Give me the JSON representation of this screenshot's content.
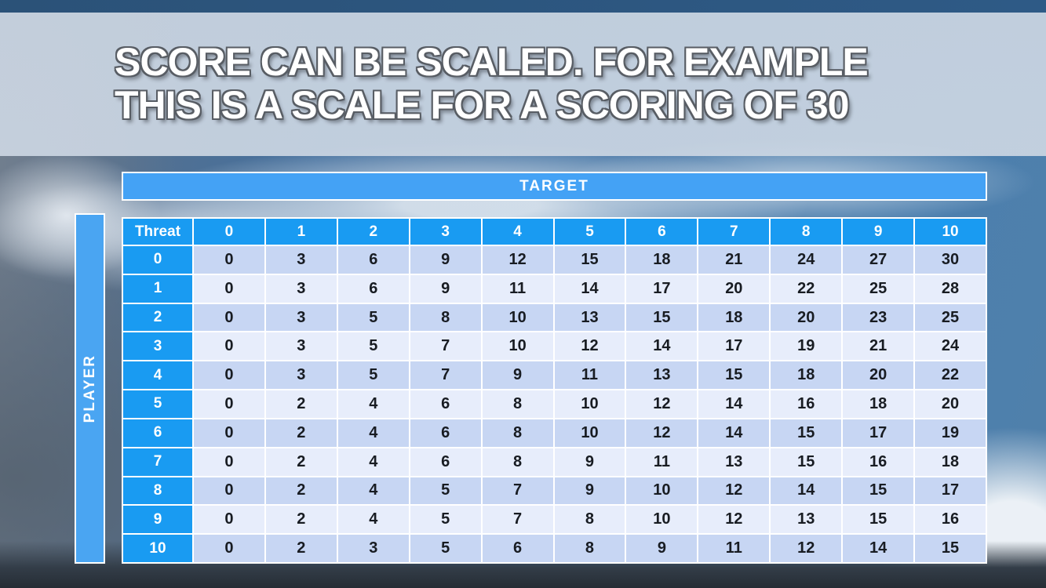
{
  "title": {
    "line1": "SCORE CAN BE SCALED. FOR EXAMPLE",
    "line2": "THIS IS A SCALE FOR A SCORING OF 30"
  },
  "table": {
    "target_label": "TARGET",
    "player_label": "PLAYER",
    "corner_label": "Threat",
    "column_headers": [
      "0",
      "1",
      "2",
      "3",
      "4",
      "5",
      "6",
      "7",
      "8",
      "9",
      "10"
    ],
    "row_headers": [
      "0",
      "1",
      "2",
      "3",
      "4",
      "5",
      "6",
      "7",
      "8",
      "9",
      "10"
    ],
    "rows": [
      [
        0,
        3,
        6,
        9,
        12,
        15,
        18,
        21,
        24,
        27,
        30
      ],
      [
        0,
        3,
        6,
        9,
        11,
        14,
        17,
        20,
        22,
        25,
        28
      ],
      [
        0,
        3,
        5,
        8,
        10,
        13,
        15,
        18,
        20,
        23,
        25
      ],
      [
        0,
        3,
        5,
        7,
        10,
        12,
        14,
        17,
        19,
        21,
        24
      ],
      [
        0,
        3,
        5,
        7,
        9,
        11,
        13,
        15,
        18,
        20,
        22
      ],
      [
        0,
        2,
        4,
        6,
        8,
        10,
        12,
        14,
        16,
        18,
        20
      ],
      [
        0,
        2,
        4,
        6,
        8,
        10,
        12,
        14,
        15,
        17,
        19
      ],
      [
        0,
        2,
        4,
        6,
        8,
        9,
        11,
        13,
        15,
        16,
        18
      ],
      [
        0,
        2,
        4,
        5,
        7,
        9,
        10,
        12,
        14,
        15,
        17
      ],
      [
        0,
        2,
        4,
        5,
        7,
        8,
        10,
        12,
        13,
        15,
        16
      ],
      [
        0,
        2,
        3,
        5,
        6,
        8,
        9,
        11,
        12,
        14,
        15
      ]
    ]
  },
  "chart_data": {
    "type": "table",
    "title": "Score scale for a scoring of 30",
    "xlabel": "TARGET",
    "ylabel": "PLAYER",
    "corner": "Threat",
    "columns": [
      0,
      1,
      2,
      3,
      4,
      5,
      6,
      7,
      8,
      9,
      10
    ],
    "row_index": [
      0,
      1,
      2,
      3,
      4,
      5,
      6,
      7,
      8,
      9,
      10
    ],
    "values": [
      [
        0,
        3,
        6,
        9,
        12,
        15,
        18,
        21,
        24,
        27,
        30
      ],
      [
        0,
        3,
        6,
        9,
        11,
        14,
        17,
        20,
        22,
        25,
        28
      ],
      [
        0,
        3,
        5,
        8,
        10,
        13,
        15,
        18,
        20,
        23,
        25
      ],
      [
        0,
        3,
        5,
        7,
        10,
        12,
        14,
        17,
        19,
        21,
        24
      ],
      [
        0,
        3,
        5,
        7,
        9,
        11,
        13,
        15,
        18,
        20,
        22
      ],
      [
        0,
        2,
        4,
        6,
        8,
        10,
        12,
        14,
        16,
        18,
        20
      ],
      [
        0,
        2,
        4,
        6,
        8,
        10,
        12,
        14,
        15,
        17,
        19
      ],
      [
        0,
        2,
        4,
        6,
        8,
        9,
        11,
        13,
        15,
        16,
        18
      ],
      [
        0,
        2,
        4,
        5,
        7,
        9,
        10,
        12,
        14,
        15,
        17
      ],
      [
        0,
        2,
        4,
        5,
        7,
        8,
        10,
        12,
        13,
        15,
        16
      ],
      [
        0,
        2,
        3,
        5,
        6,
        8,
        9,
        11,
        12,
        14,
        15
      ]
    ]
  },
  "colors": {
    "top_bar": "#2c567f",
    "banner": "#cdd7e4",
    "bar_blue": "#46a3f4",
    "header_blue": "#199bf2",
    "row_band_dark": "#c7d6f3",
    "row_band_light": "#e7edfb",
    "cell_text": "#181c22",
    "title_text": "#ffffff",
    "title_outline": "#585d64"
  }
}
